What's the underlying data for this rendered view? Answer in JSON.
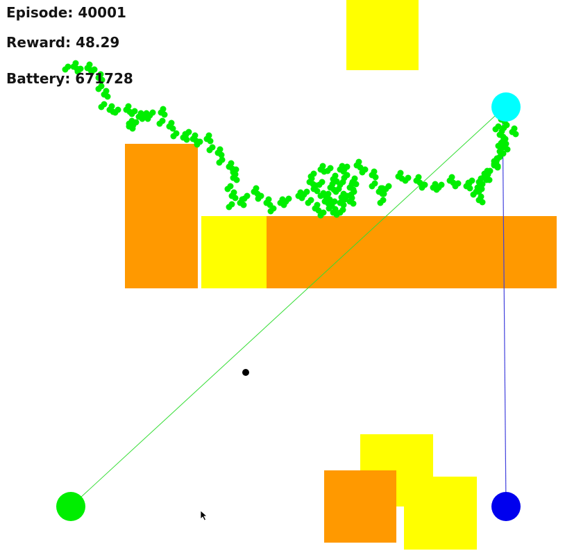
{
  "hud": {
    "episode_label": "Episode: 40001",
    "reward_label": "Reward: 48.29",
    "battery_label": "Battery: 671728"
  },
  "colors": {
    "background": "#ffffff",
    "obstacle_orange": "#ff9900",
    "obstacle_yellow": "#ffff00",
    "trail": "#00ee00",
    "agent": "#00ffff",
    "goal": "#00ee00",
    "charger": "#0000ee",
    "marker": "#000000"
  },
  "entities": {
    "agent": "cyan-circle",
    "goal": "green-circle",
    "charger": "blue-circle",
    "marker": "black-dot",
    "cursor": "mouse-pointer-icon"
  }
}
